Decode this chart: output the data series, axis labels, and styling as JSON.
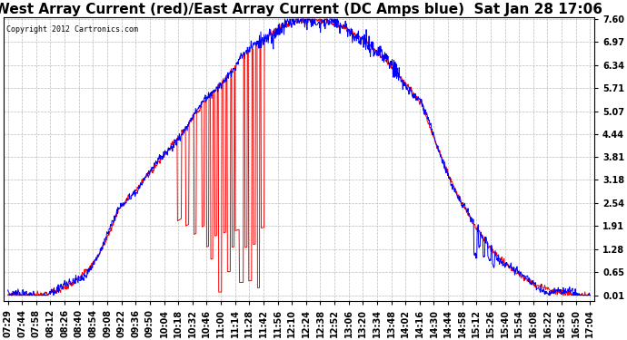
{
  "title": "West Array Current (red)/East Array Current (DC Amps blue)  Sat Jan 28 17:06",
  "copyright_text": "Copyright 2012 Cartronics.com",
  "yticks": [
    0.01,
    0.65,
    1.28,
    1.91,
    2.54,
    3.18,
    3.81,
    4.44,
    5.07,
    5.71,
    6.34,
    6.97,
    7.6
  ],
  "ymin": -0.15,
  "ymax": 7.65,
  "background_color": "#ffffff",
  "grid_color": "#bbbbbb",
  "red_color": "#ff0000",
  "blue_color": "#0000ff",
  "title_fontsize": 11,
  "tick_fontsize": 7,
  "x_labels": [
    "07:29",
    "07:44",
    "07:58",
    "08:12",
    "08:26",
    "08:40",
    "08:54",
    "09:08",
    "09:22",
    "09:36",
    "09:50",
    "10:04",
    "10:18",
    "10:32",
    "10:46",
    "11:00",
    "11:14",
    "11:28",
    "11:42",
    "11:56",
    "12:10",
    "12:24",
    "12:38",
    "12:52",
    "13:06",
    "13:20",
    "13:34",
    "13:48",
    "14:02",
    "14:16",
    "14:30",
    "14:44",
    "14:58",
    "15:12",
    "15:26",
    "15:40",
    "15:54",
    "16:08",
    "16:22",
    "16:36",
    "16:50",
    "17:04"
  ],
  "n_points": 1260,
  "seed": 77
}
